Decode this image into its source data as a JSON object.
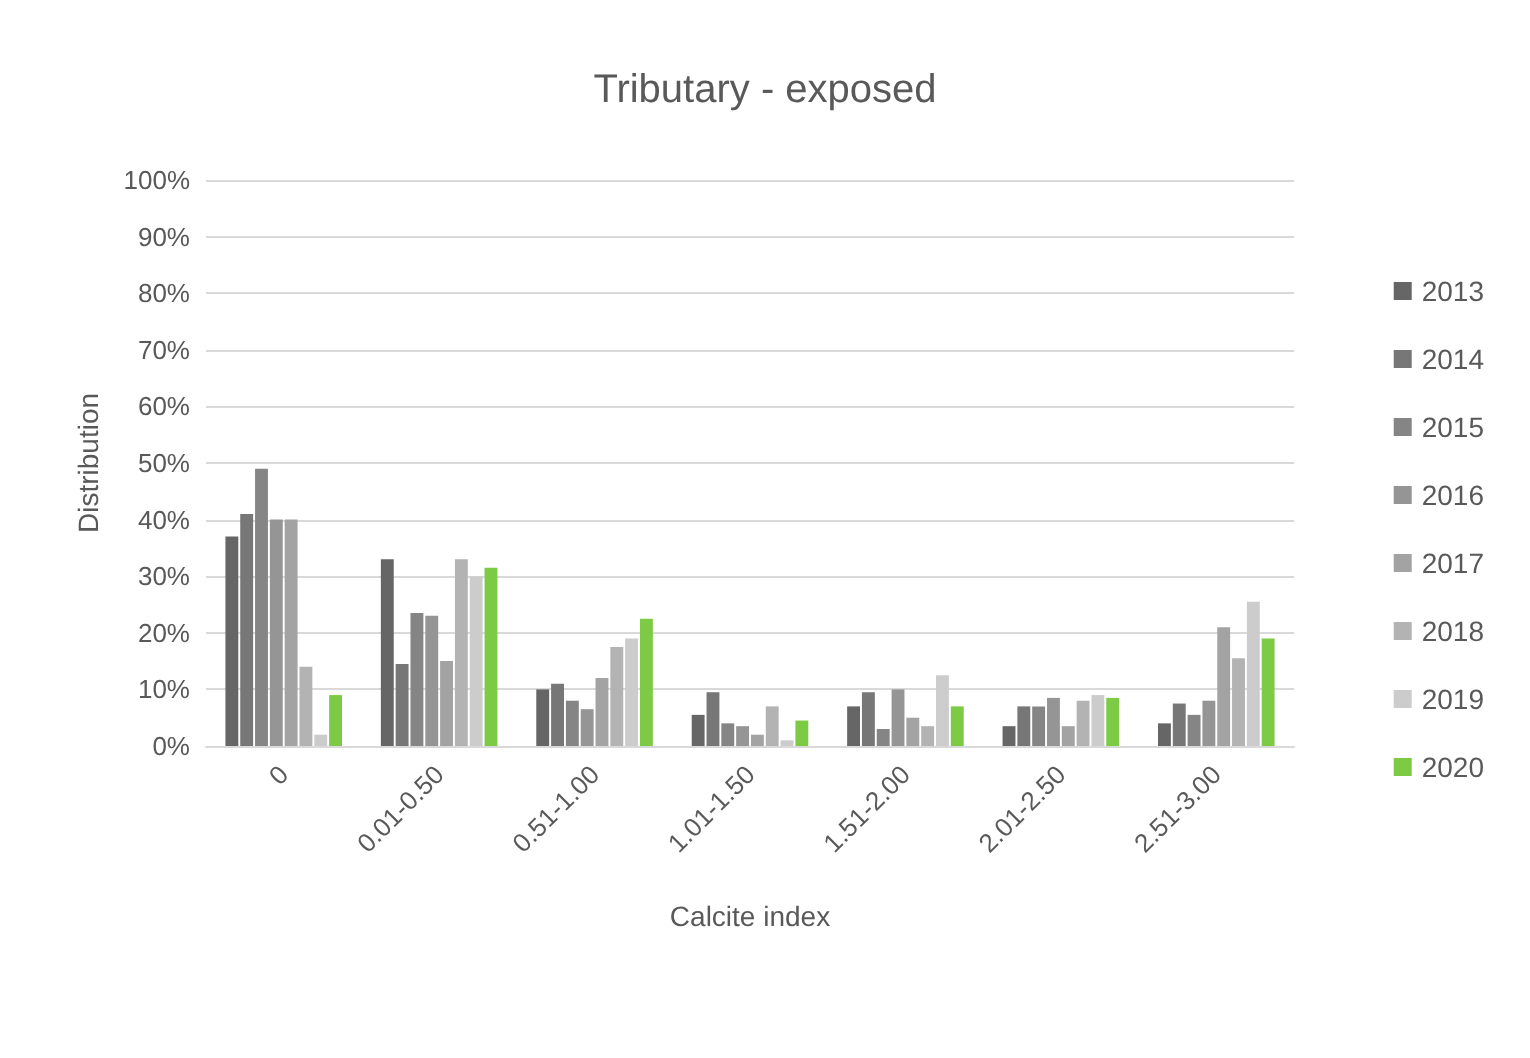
{
  "chart_data": {
    "type": "bar",
    "title": "Tributary - exposed",
    "xlabel": "Calcite index",
    "ylabel": "Distribution",
    "categories": [
      "0",
      "0.01-0.50",
      "0.51-1.00",
      "1.01-1.50",
      "1.51-2.00",
      "2.01-2.50",
      "2.51-3.00"
    ],
    "series": [
      {
        "name": "2013",
        "color": "#666666",
        "values": [
          37,
          33,
          10,
          5.5,
          7,
          3.5,
          4
        ]
      },
      {
        "name": "2014",
        "color": "#777777",
        "values": [
          41,
          14.5,
          11,
          9.5,
          9.5,
          7,
          7.5
        ]
      },
      {
        "name": "2015",
        "color": "#858585",
        "values": [
          49,
          23.5,
          8,
          4,
          3,
          7,
          5.5
        ]
      },
      {
        "name": "2016",
        "color": "#959595",
        "values": [
          40,
          23,
          6.5,
          3.5,
          10,
          8.5,
          8
        ]
      },
      {
        "name": "2017",
        "color": "#a3a3a3",
        "values": [
          40,
          15,
          12,
          2,
          5,
          3.5,
          21
        ]
      },
      {
        "name": "2018",
        "color": "#b3b3b3",
        "values": [
          14,
          33,
          17.5,
          7,
          3.5,
          8,
          15.5
        ]
      },
      {
        "name": "2019",
        "color": "#cccccc",
        "values": [
          2,
          30,
          19,
          1,
          12.5,
          9,
          25.5
        ]
      },
      {
        "name": "2020",
        "color": "#7dcb45",
        "values": [
          9,
          31.5,
          22.5,
          4.5,
          7,
          8.5,
          19
        ]
      }
    ],
    "ylim": [
      0,
      100
    ],
    "yticks": [
      {
        "value": 0,
        "label": "0%"
      },
      {
        "value": 10,
        "label": "10%"
      },
      {
        "value": 20,
        "label": "20%"
      },
      {
        "value": 30,
        "label": "30%"
      },
      {
        "value": 40,
        "label": "40%"
      },
      {
        "value": 50,
        "label": "50%"
      },
      {
        "value": 60,
        "label": "60%"
      },
      {
        "value": 70,
        "label": "70%"
      },
      {
        "value": 80,
        "label": "80%"
      },
      {
        "value": 90,
        "label": "90%"
      },
      {
        "value": 100,
        "label": "100%"
      }
    ],
    "grid": "y",
    "legend": "right"
  }
}
